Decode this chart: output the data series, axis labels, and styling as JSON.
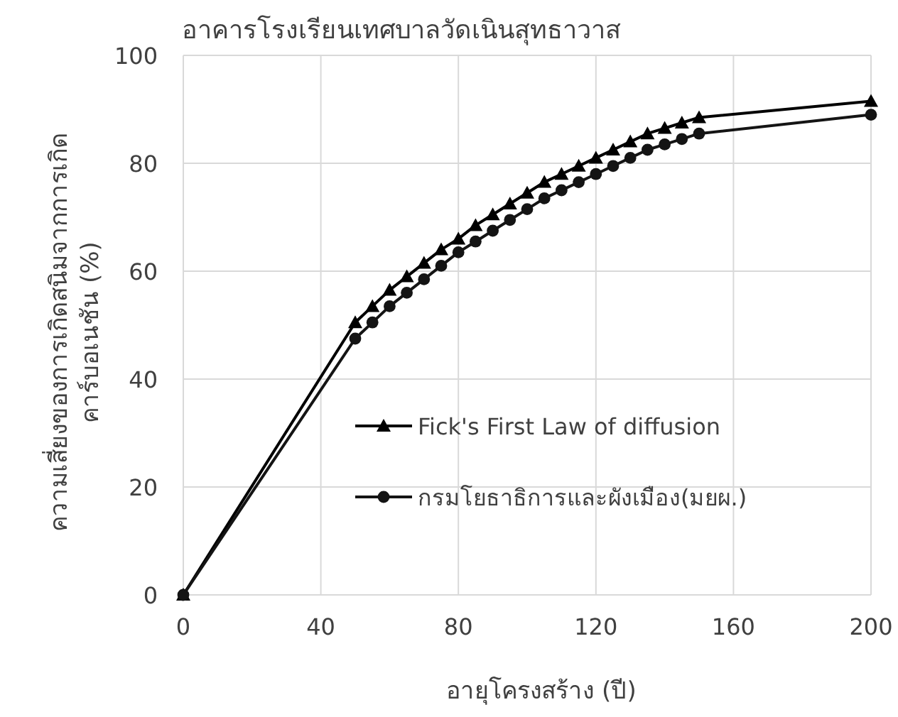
{
  "chart_data": {
    "type": "line",
    "title": "อาคารโรงเรียนเทศบาลวัดเนินสุทธาวาส",
    "xlabel": "อายุโครงสร้าง (ปี)",
    "ylabel": "ความเสี่ยงของการเกิดสนิมจากการเกิดคาร์บอเนชัน (%)",
    "xlim": [
      0,
      200
    ],
    "xticks": [
      0,
      40,
      80,
      120,
      160,
      200
    ],
    "ylim": [
      0,
      100
    ],
    "yticks": [
      0,
      20,
      40,
      60,
      80,
      100
    ],
    "grid": true,
    "legend": "bottom right",
    "series": [
      {
        "name": "Fick's First Law of diffusion",
        "color": "#000000",
        "marker": "triangle",
        "x": [
          0,
          50,
          55,
          60,
          65,
          70,
          75,
          80,
          85,
          90,
          95,
          100,
          105,
          110,
          115,
          120,
          125,
          130,
          135,
          140,
          145,
          150,
          200
        ],
        "values": [
          0,
          50.5,
          53.5,
          56.5,
          59,
          61.5,
          64,
          66,
          68.5,
          70.5,
          72.5,
          74.5,
          76.5,
          78,
          79.5,
          81,
          82.5,
          84,
          85.5,
          86.5,
          87.5,
          88.5,
          91.5
        ]
      },
      {
        "name": "กรมโยธาธิการและผังเมือง(มยผ.)",
        "color": "#141414",
        "marker": "circle",
        "x": [
          0,
          50,
          55,
          60,
          65,
          70,
          75,
          80,
          85,
          90,
          95,
          100,
          105,
          110,
          115,
          120,
          125,
          130,
          135,
          140,
          145,
          150,
          200
        ],
        "values": [
          0,
          47.5,
          50.5,
          53.5,
          56,
          58.5,
          61,
          63.5,
          65.5,
          67.5,
          69.5,
          71.5,
          73.5,
          75,
          76.5,
          78,
          79.5,
          81,
          82.5,
          83.5,
          84.5,
          85.5,
          89
        ]
      }
    ]
  }
}
